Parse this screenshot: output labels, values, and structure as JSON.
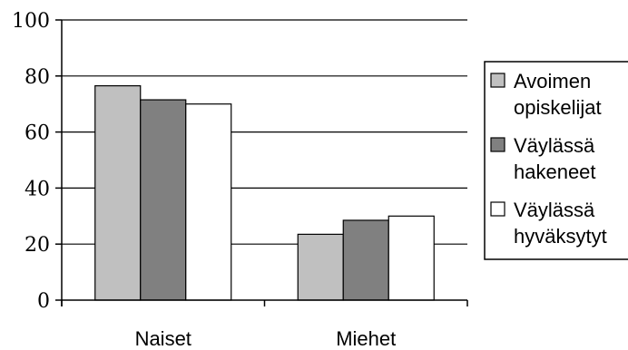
{
  "chart_data": {
    "type": "bar",
    "categories": [
      "Naiset",
      "Miehet"
    ],
    "series": [
      {
        "name": "Avoimen opiskelijat",
        "name_lines": [
          "Avoimen",
          "opiskelijat"
        ],
        "values": [
          76.5,
          23.5
        ],
        "color": "#c0c0c0"
      },
      {
        "name": "Väylässä hakeneet",
        "name_lines": [
          "Väylässä",
          "hakeneet"
        ],
        "values": [
          71.5,
          28.5
        ],
        "color": "#808080"
      },
      {
        "name": "Väylässä hyväksytyt",
        "name_lines": [
          "Väylässä",
          "hyväksytyt"
        ],
        "values": [
          70,
          30
        ],
        "color": "#ffffff"
      }
    ],
    "ylim": [
      0,
      100
    ],
    "yticks": [
      0,
      20,
      40,
      60,
      80,
      100
    ],
    "ytick_labels": [
      "0",
      "20",
      "40",
      "60",
      "80",
      "100"
    ],
    "grid": true,
    "legend_position": "right",
    "title": "",
    "xlabel": "",
    "ylabel": ""
  }
}
